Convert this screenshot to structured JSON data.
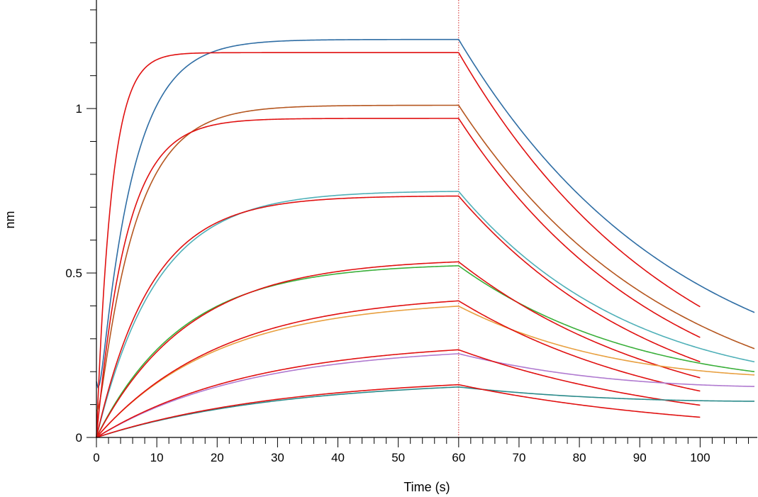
{
  "chart_data": {
    "type": "line",
    "xlabel": "Time (s)",
    "ylabel": "nm",
    "xlim": [
      0,
      109
    ],
    "ylim": [
      0,
      1.33
    ],
    "x_ticks": [
      0,
      10,
      20,
      30,
      40,
      50,
      60,
      70,
      80,
      90,
      100
    ],
    "y_ticks": [
      0,
      0.5,
      1
    ],
    "y_tick_labels": [
      "0",
      "0.5",
      "1"
    ],
    "x_minor_step": 2,
    "y_minor_step": 0.1,
    "dissociation_start": 60,
    "grid": false,
    "legend": "none",
    "series": [
      {
        "color": "#2e6da4",
        "plateau": 1.21,
        "ka": 0.18,
        "kd": 0.026,
        "end": 109,
        "offset": 0.17,
        "overshoot": 0.05,
        "tail": 0.38
      },
      {
        "color": "#e01010",
        "plateau": 1.17,
        "ka": 0.4,
        "kd": 0.027,
        "end": 100
      },
      {
        "color": "#b5561f",
        "plateau": 1.01,
        "ka": 0.16,
        "kd": 0.028,
        "end": 109,
        "offset": 0.08,
        "tail": 0.27
      },
      {
        "color": "#e01010",
        "plateau": 0.97,
        "ka": 0.2,
        "kd": 0.029,
        "end": 100
      },
      {
        "color": "#4fb0b8",
        "plateau": 0.75,
        "ka": 0.1,
        "kd": 0.031,
        "end": 109,
        "tail": 0.23
      },
      {
        "color": "#e01010",
        "plateau": 0.735,
        "ka": 0.11,
        "kd": 0.029,
        "end": 100
      },
      {
        "color": "#3aaf3a",
        "plateau": 0.53,
        "ka": 0.07,
        "kd": 0.028,
        "end": 109,
        "tail": 0.2
      },
      {
        "color": "#e01010",
        "plateau": 0.545,
        "ka": 0.065,
        "kd": 0.027,
        "end": 100
      },
      {
        "color": "#e8a040",
        "plateau": 0.42,
        "ka": 0.05,
        "kd": 0.028,
        "end": 109,
        "tail": 0.19
      },
      {
        "color": "#e01010",
        "plateau": 0.44,
        "ka": 0.048,
        "kd": 0.027,
        "end": 100
      },
      {
        "color": "#b07ad0",
        "plateau": 0.28,
        "ka": 0.04,
        "kd": 0.024,
        "end": 109,
        "tail": 0.155
      },
      {
        "color": "#e01010",
        "plateau": 0.295,
        "ka": 0.039,
        "kd": 0.025,
        "end": 100
      },
      {
        "color": "#2a8a8a",
        "plateau": 0.178,
        "ka": 0.033,
        "kd": 0.02,
        "end": 109,
        "tail": 0.11
      },
      {
        "color": "#e01010",
        "plateau": 0.188,
        "ka": 0.032,
        "kd": 0.024,
        "end": 100
      }
    ]
  }
}
